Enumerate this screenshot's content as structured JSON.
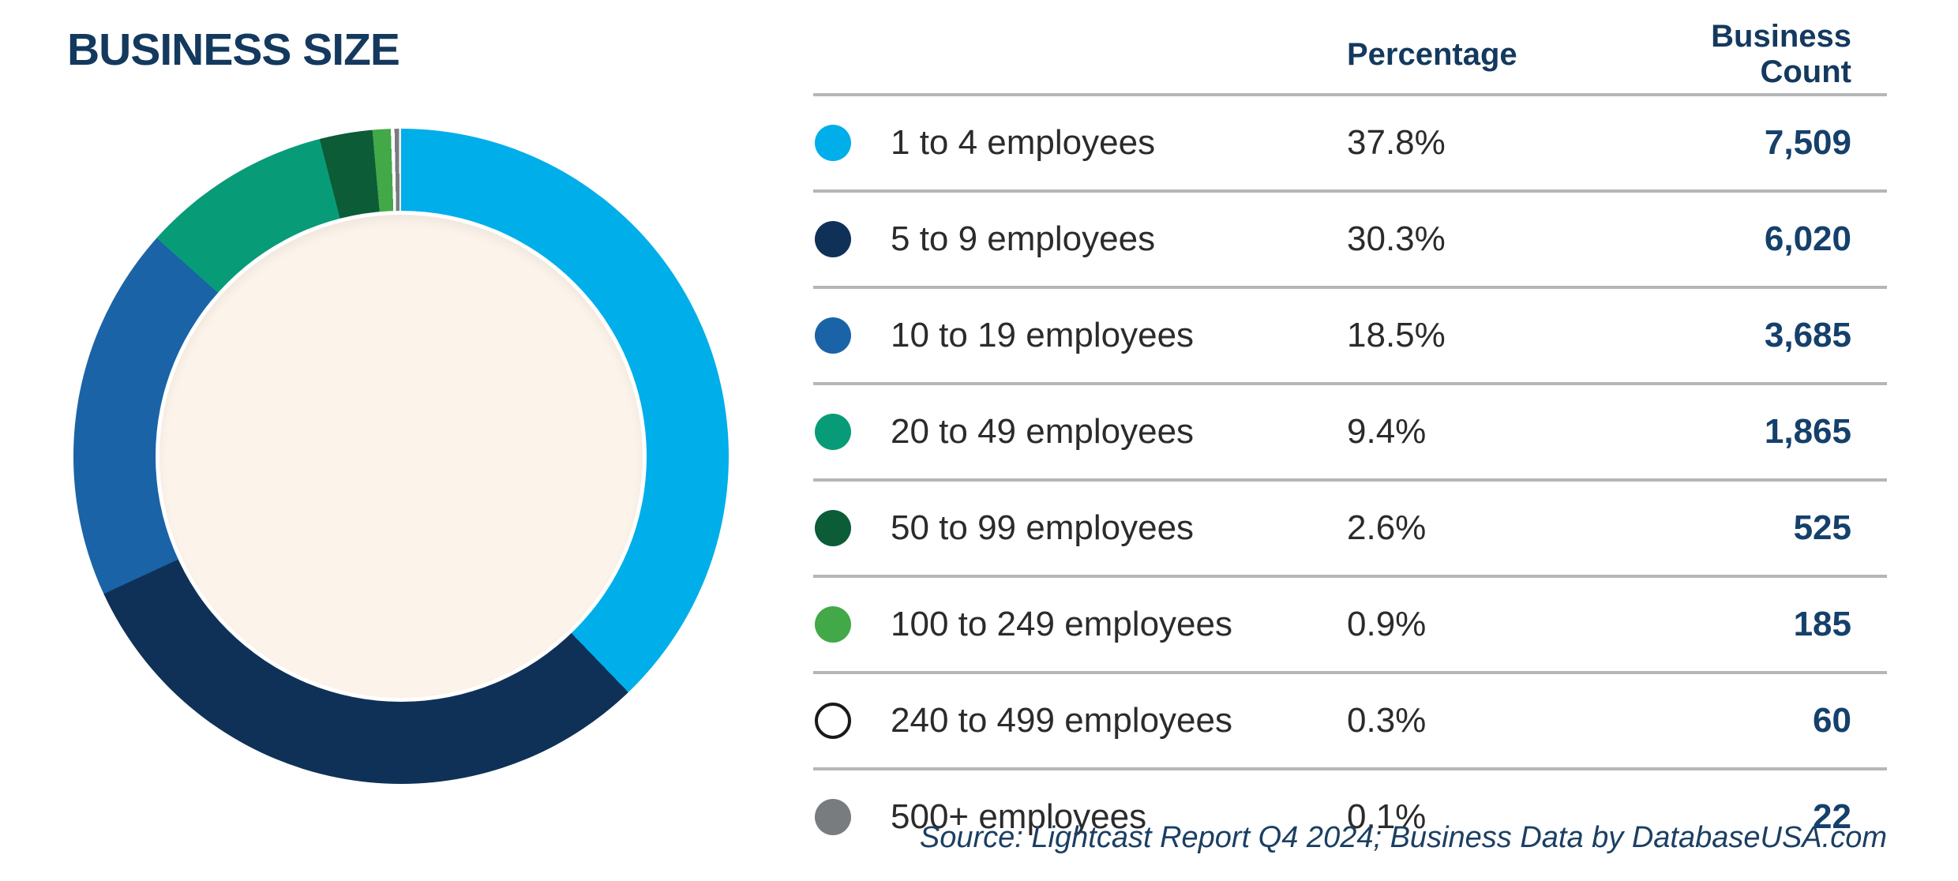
{
  "title": "BUSINESS SIZE",
  "table": {
    "headers": {
      "percentage": "Percentage",
      "count": "Business Count"
    },
    "rows": [
      {
        "label": "1 to 4 employees",
        "percentage": "37.8%",
        "count": "7,509",
        "color": "#00AEEA",
        "outlined": false
      },
      {
        "label": "5 to 9 employees",
        "percentage": "30.3%",
        "count": "6,020",
        "color": "#103157",
        "outlined": false
      },
      {
        "label": "10 to 19 employees",
        "percentage": "18.5%",
        "count": "3,685",
        "color": "#1A63A7",
        "outlined": false
      },
      {
        "label": "20 to 49 employees",
        "percentage": "9.4%",
        "count": "1,865",
        "color": "#089B78",
        "outlined": false
      },
      {
        "label": "50 to 99 employees",
        "percentage": "2.6%",
        "count": "525",
        "color": "#0C5C38",
        "outlined": false
      },
      {
        "label": "100 to 249 employees",
        "percentage": "0.9%",
        "count": "185",
        "color": "#43A847",
        "outlined": false
      },
      {
        "label": "240 to 499 employees",
        "percentage": "0.3%",
        "count": "60",
        "color": "#FFFFFF",
        "outlined": true
      },
      {
        "label": "500+ employees",
        "percentage": "0.1%",
        "count": "22",
        "color": "#797C7F",
        "outlined": false
      }
    ]
  },
  "source": "Source: Lightcast Report Q4 2024; Business Data by DatabaseUSA.com",
  "chart_data": {
    "type": "pie",
    "variant": "donut",
    "title": "BUSINESS SIZE",
    "categories": [
      "1 to 4 employees",
      "5 to 9 employees",
      "10 to 19 employees",
      "20 to 49 employees",
      "50 to 99 employees",
      "100 to 249 employees",
      "240 to 499 employees",
      "500+ employees"
    ],
    "series": [
      {
        "name": "Percentage",
        "values": [
          37.8,
          30.3,
          18.5,
          9.4,
          2.6,
          0.9,
          0.3,
          0.1
        ]
      },
      {
        "name": "Business Count",
        "values": [
          7509,
          6020,
          3685,
          1865,
          525,
          185,
          60,
          22
        ]
      }
    ],
    "segment_colors": [
      "#00AEEA",
      "#103157",
      "#1A63A7",
      "#089B78",
      "#0C5C38",
      "#43A847",
      "#FFFFFF",
      "#797C7F"
    ],
    "start_angle_deg": 0,
    "direction": "clockwise",
    "hole_color": "#FCF3EA",
    "legend_position": "right-table"
  },
  "colors": {
    "title_navy": "#14395E",
    "count_navy": "#15406B",
    "label_text": "#2B2B2B",
    "divider": "#B4B6B8",
    "source_navy": "#1B3F63",
    "hole_cream": "#FCF3EA"
  }
}
